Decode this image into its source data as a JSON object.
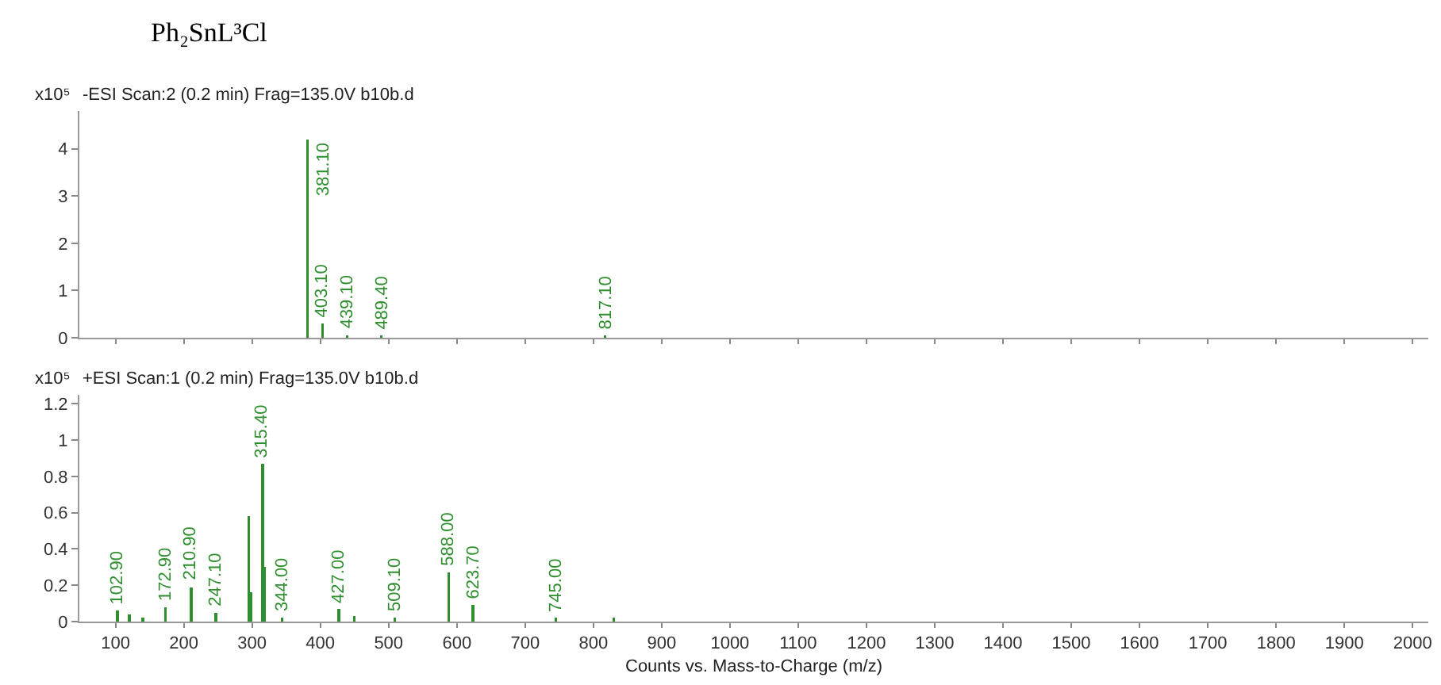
{
  "chart_data": [
    {
      "type": "bar",
      "title": "Ph₂SnL³Cl",
      "subtitle": "-ESI Scan:2 (0.2 min) Frag=135.0V b10b.d",
      "ylabel": "x10⁵",
      "color": "#2f8f2f",
      "x": [
        381.1,
        403.1,
        439.1,
        489.4,
        817.1
      ],
      "values": [
        4.2,
        0.3,
        0.05,
        0.05,
        0.05
      ],
      "annotations": [
        {
          "text": "381.10",
          "x": 381.1,
          "y": 4.2
        },
        {
          "text": "403.10",
          "x": 403.1,
          "y": 0.3
        },
        {
          "text": "439.10",
          "x": 439.1,
          "y": 0.05
        },
        {
          "text": "489.40",
          "x": 489.4,
          "y": 0.05
        },
        {
          "text": "817.10",
          "x": 817.1,
          "y": 0.05
        }
      ],
      "xlim": [
        47,
        2023
      ],
      "xticks": [
        100,
        200,
        300,
        400,
        500,
        600,
        700,
        800,
        900,
        1000,
        1100,
        1200,
        1300,
        1400,
        1500,
        1600,
        1700,
        1800,
        1900,
        2000
      ],
      "ylim": [
        0,
        4.8
      ],
      "yticks": [
        0,
        1,
        2,
        3,
        4
      ],
      "tick_labels": "y"
    },
    {
      "type": "bar",
      "subtitle": "+ESI Scan:1 (0.2 min) Frag=135.0V b10b.d",
      "ylabel": "x10⁵",
      "xlabel": "Counts vs. Mass-to-Charge (m/z)",
      "color": "#2f8f2f",
      "x": [
        102.9,
        120,
        140,
        172.9,
        210.9,
        247.1,
        295,
        298,
        315.4,
        318,
        344,
        427,
        450,
        509.1,
        588,
        623.7,
        745,
        830
      ],
      "values": [
        0.06,
        0.04,
        0.02,
        0.08,
        0.19,
        0.05,
        0.58,
        0.16,
        0.87,
        0.3,
        0.02,
        0.07,
        0.03,
        0.02,
        0.27,
        0.09,
        0.02,
        0.02
      ],
      "annotations": [
        {
          "text": "102.90",
          "x": 102.9,
          "y": 0.06
        },
        {
          "text": "172.90",
          "x": 172.9,
          "y": 0.08
        },
        {
          "text": "210.90",
          "x": 210.9,
          "y": 0.19
        },
        {
          "text": "247.10",
          "x": 247.1,
          "y": 0.05
        },
        {
          "text": "315.40",
          "x": 315.4,
          "y": 0.87
        },
        {
          "text": "344.00",
          "x": 344,
          "y": 0.02
        },
        {
          "text": "427.00",
          "x": 427,
          "y": 0.07
        },
        {
          "text": "509.10",
          "x": 509.1,
          "y": 0.02
        },
        {
          "text": "588.00",
          "x": 588,
          "y": 0.27
        },
        {
          "text": "623.70",
          "x": 623.7,
          "y": 0.09
        },
        {
          "text": "745.00",
          "x": 745,
          "y": 0.02
        }
      ],
      "xlim": [
        47,
        2023
      ],
      "xticks": [
        100,
        200,
        300,
        400,
        500,
        600,
        700,
        800,
        900,
        1000,
        1100,
        1200,
        1300,
        1400,
        1500,
        1600,
        1700,
        1800,
        1900,
        2000
      ],
      "ylim": [
        0,
        1.25
      ],
      "yticks": [
        0,
        0.2,
        0.4,
        0.6,
        0.8,
        1,
        1.2
      ]
    }
  ]
}
